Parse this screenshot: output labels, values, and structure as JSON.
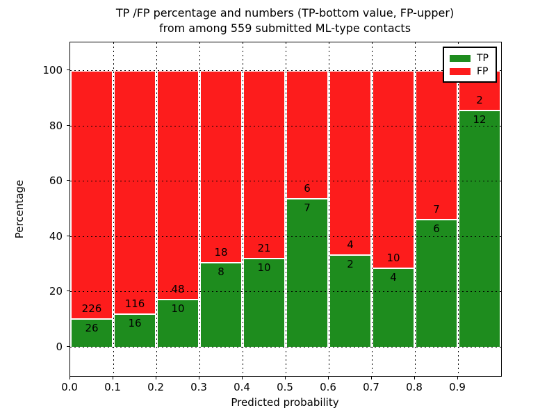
{
  "title": {
    "line1": "TP /FP percentage and numbers (TP-bottom value, FP-upper)",
    "line2": "from among 559 submitted ML-type contacts"
  },
  "axes": {
    "xlabel": "Predicted probability",
    "ylabel": "Percentage",
    "x_tick_labels": [
      "0.0",
      "0.1",
      "0.2",
      "0.3",
      "0.4",
      "0.5",
      "0.6",
      "0.7",
      "0.8",
      "0.9"
    ],
    "y_tick_labels": [
      "0",
      "20",
      "40",
      "60",
      "80",
      "100"
    ],
    "y_tick_values": [
      0,
      20,
      40,
      60,
      80,
      100
    ]
  },
  "legend": {
    "position": "upper right",
    "entries": [
      {
        "label": "TP",
        "color": "#1e8c1e"
      },
      {
        "label": "FP",
        "color": "#fd1c1c"
      }
    ]
  },
  "colors": {
    "tp_green": "#1e8c1e",
    "fp_red": "#fd1c1c",
    "bar_edge": "#ffffff",
    "grid": "#000000"
  },
  "chart_data": {
    "type": "bar",
    "stacked": true,
    "normalized_to_percent": true,
    "title": "TP /FP percentage and numbers (TP-bottom value, FP-upper) from among 559 submitted ML-type contacts",
    "xlabel": "Predicted probability",
    "ylabel": "Percentage",
    "xlim": [
      0.0,
      1.0
    ],
    "ylim": [
      -10.5,
      110.5
    ],
    "bin_width": 0.1,
    "bin_starts": [
      0.0,
      0.1,
      0.2,
      0.3,
      0.4,
      0.5,
      0.6,
      0.7,
      0.8,
      0.9
    ],
    "series": [
      {
        "name": "TP",
        "color": "#1e8c1e",
        "values": [
          26,
          16,
          10,
          8,
          10,
          7,
          2,
          4,
          6,
          12
        ]
      },
      {
        "name": "FP",
        "color": "#fd1c1c",
        "values": [
          226,
          116,
          48,
          18,
          21,
          6,
          4,
          10,
          7,
          2
        ]
      }
    ],
    "tp_percent_of_bin": [
      10.3,
      12.1,
      17.2,
      30.8,
      32.3,
      53.8,
      33.3,
      28.6,
      46.2,
      85.7
    ],
    "total_contacts": 559,
    "grid": "dotted",
    "legend_position": "upper right"
  }
}
